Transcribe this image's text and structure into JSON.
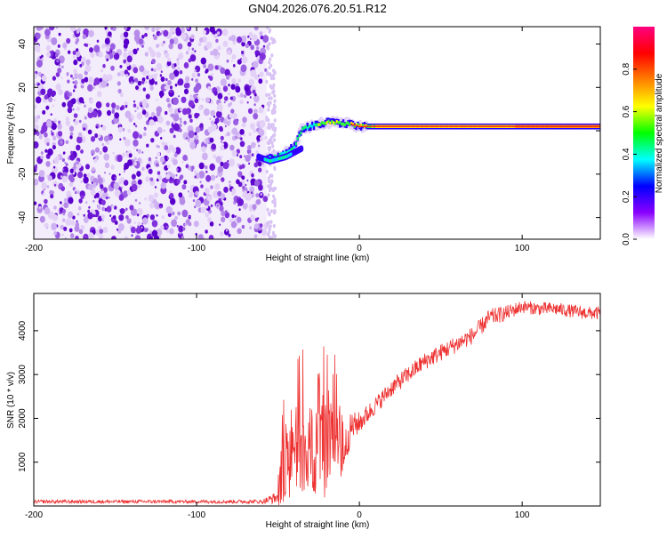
{
  "title": "GN04.2026.076.20.51.R12",
  "chart_data": [
    {
      "type": "heatmap",
      "name": "spectrogram",
      "xlabel": "Height of straight line (km)",
      "ylabel": "Frequency (Hz)",
      "xlim": [
        -200,
        148
      ],
      "ylim": [
        -50,
        48
      ],
      "x_ticks": [
        -200,
        -100,
        0,
        100
      ],
      "x_tick_labels": [
        "-200",
        "-100",
        "0",
        "100"
      ],
      "y_ticks": [
        -40,
        -20,
        0,
        20,
        40
      ],
      "y_tick_labels": [
        "-40",
        "-20",
        "0",
        "20",
        "40"
      ],
      "colorbar": {
        "label": "Normalized spectral amplitude",
        "range": [
          0,
          1
        ],
        "ticks": [
          0,
          0.2,
          0.4,
          0.6,
          0.8
        ],
        "tick_labels": [
          "0.0",
          "0.2",
          "0.4",
          "0.6",
          "0.8"
        ],
        "colors": [
          "#ffffff",
          "#8a00ff",
          "#0000ff",
          "#00ffff",
          "#00ff00",
          "#ffff00",
          "#ff8000",
          "#ff0000",
          "#ff0080"
        ]
      },
      "noise_region_x": [
        -200,
        -57
      ],
      "trace": {
        "main_x": [
          -57,
          148
        ],
        "main_freq_hz": [
          -13,
          -12,
          -10,
          -7,
          1,
          4,
          3,
          2,
          2,
          2,
          2,
          2
        ],
        "main_freq_x": [
          -57,
          -50,
          -45,
          -40,
          -35,
          -20,
          -5,
          0,
          20,
          60,
          100,
          148
        ],
        "branch_freq_x": [
          -62,
          -55,
          -50,
          -45,
          -40,
          -35
        ],
        "branch_freq_hz": [
          -12,
          -14,
          -13,
          -12,
          -10,
          -8
        ]
      }
    },
    {
      "type": "line",
      "name": "snr",
      "xlabel": "Height of straight line (km)",
      "ylabel": "SNR (10 * v/v)",
      "xlim": [
        -200,
        148
      ],
      "ylim": [
        0,
        4850
      ],
      "x_ticks": [
        -200,
        -100,
        0,
        100
      ],
      "x_tick_labels": [
        "-200",
        "-100",
        "0",
        "100"
      ],
      "y_ticks": [
        1000,
        2000,
        3000,
        4000
      ],
      "y_tick_labels": [
        "1000",
        "2000",
        "3000",
        "4000"
      ],
      "series": [
        {
          "name": "SNR",
          "color": "#ee3333",
          "x": [
            -200,
            -150,
            -100,
            -60,
            -50,
            -45,
            -40,
            -35,
            -30,
            -25,
            -20,
            -15,
            -10,
            -5,
            0,
            10,
            20,
            30,
            40,
            50,
            60,
            70,
            80,
            90,
            100,
            110,
            120,
            130,
            140,
            148
          ],
          "values": [
            100,
            100,
            100,
            100,
            200,
            900,
            1000,
            1200,
            900,
            1400,
            1000,
            1900,
            1200,
            1800,
            1900,
            2300,
            2700,
            3000,
            3300,
            3500,
            3700,
            3900,
            4300,
            4400,
            4550,
            4500,
            4500,
            4450,
            4400,
            4400
          ],
          "spread": [
            80,
            80,
            80,
            90,
            300,
            900,
            900,
            1000,
            900,
            1100,
            1000,
            1000,
            900,
            700,
            500,
            400,
            400,
            400,
            400,
            400,
            400,
            400,
            400,
            350,
            300,
            300,
            300,
            300,
            300,
            300
          ]
        }
      ]
    }
  ]
}
